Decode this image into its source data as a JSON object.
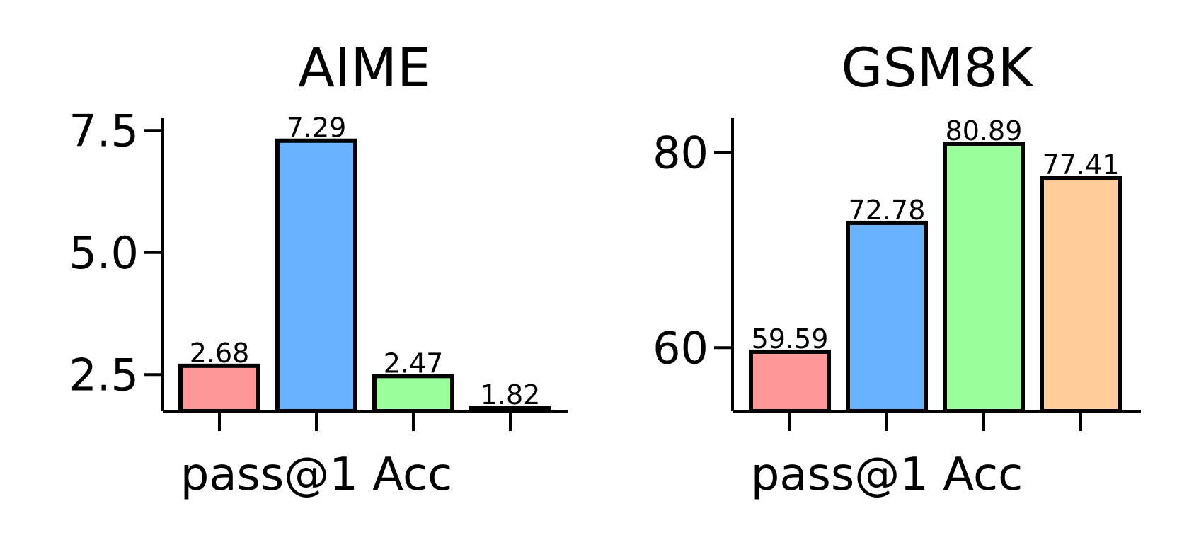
{
  "chart_data": [
    {
      "type": "bar",
      "title": "AIME",
      "xlabel": "pass@1 Acc",
      "ylabel": "",
      "ylim": [
        1.75,
        7.75
      ],
      "yticks": [
        2.5,
        5.0,
        7.5
      ],
      "ytick_labels": [
        "2.5",
        "5.0",
        "7.5"
      ],
      "values": [
        2.68,
        7.29,
        2.47,
        1.82
      ],
      "value_labels": [
        "2.68",
        "7.29",
        "2.47",
        "1.82"
      ],
      "colors": [
        "#ff9999",
        "#66b2ff",
        "#99ff99",
        "#ffcc99"
      ],
      "grid": false,
      "legend": "none"
    },
    {
      "type": "bar",
      "title": "GSM8K",
      "xlabel": "pass@1 Acc",
      "ylabel": "",
      "ylim": [
        53.5,
        83.5
      ],
      "yticks": [
        60,
        80
      ],
      "ytick_labels": [
        "60",
        "80"
      ],
      "values": [
        59.59,
        72.78,
        80.89,
        77.41
      ],
      "value_labels": [
        "59.59",
        "72.78",
        "80.89",
        "77.41"
      ],
      "colors": [
        "#ff9999",
        "#66b2ff",
        "#99ff99",
        "#ffcc99"
      ],
      "grid": false,
      "legend": "none"
    }
  ]
}
